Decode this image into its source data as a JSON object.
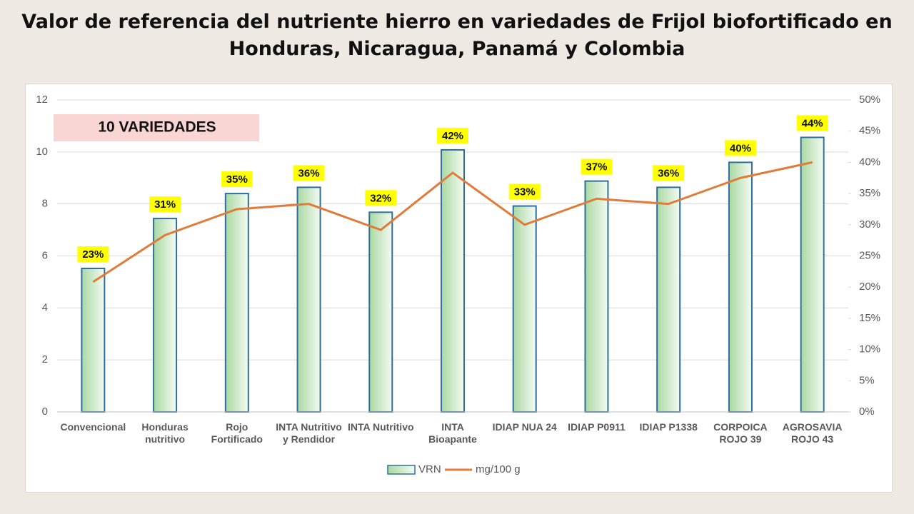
{
  "chart_data": {
    "type": "bar",
    "title": "Valor de referencia del nutriente hierro en variedades de Frijol biofortificado en Honduras, Nicaragua, Panamá y Colombia",
    "annotation": "10 VARIEDADES",
    "categories": [
      "Convencional",
      "Honduras nutritivo",
      "Rojo Fortificado",
      "INTA Nutritivo y Rendidor",
      "INTA Nutritivo",
      "INTA Bioapante",
      "IDIAP NUA 24",
      "IDIAP P0911",
      "IDIAP P1338",
      "CORPOICA ROJO 39",
      "AGROSAVIA ROJO 43"
    ],
    "series": [
      {
        "name": "VRN",
        "type": "bar",
        "axis": "y2",
        "color": "#c6e8c0",
        "values": [
          23,
          31,
          35,
          36,
          32,
          42,
          33,
          37,
          36,
          40,
          44
        ],
        "value_labels": [
          "23%",
          "31%",
          "35%",
          "36%",
          "32%",
          "42%",
          "33%",
          "37%",
          "36%",
          "40%",
          "44%"
        ]
      },
      {
        "name": "mg/100 g",
        "type": "line",
        "color": "#e07b39",
        "values": [
          5.0,
          6.8,
          7.8,
          8.0,
          7.0,
          9.2,
          7.2,
          8.2,
          8.0,
          9.0,
          9.6
        ]
      }
    ],
    "ylim": [
      0,
      12
    ],
    "yticks": [
      0,
      2,
      4,
      6,
      8,
      10,
      12
    ],
    "y2lim": [
      0,
      50
    ],
    "y2ticks": [
      {
        "value": 0,
        "label": "0%"
      },
      {
        "value": 5,
        "label": "5%"
      },
      {
        "value": 10,
        "label": "10%"
      },
      {
        "value": 15,
        "label": "15%"
      },
      {
        "value": 20,
        "label": "20%"
      },
      {
        "value": 25,
        "label": "25%"
      },
      {
        "value": 30,
        "label": "30%"
      },
      {
        "value": 35,
        "label": "35%"
      },
      {
        "value": 40,
        "label": "40%"
      },
      {
        "value": 45,
        "label": "45%"
      },
      {
        "value": 50,
        "label": "50%"
      }
    ],
    "grid": true
  }
}
